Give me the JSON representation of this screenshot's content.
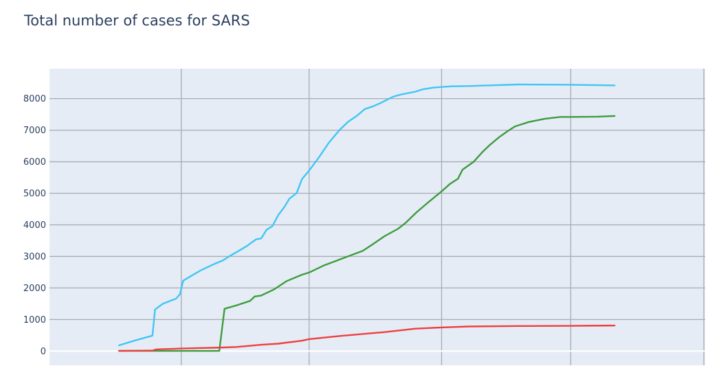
{
  "chart_data": {
    "type": "line",
    "title": "Total number of cases for SARS",
    "xlabel": "",
    "ylabel": "",
    "ylim": [
      -450,
      8950
    ],
    "y_ticks": [
      0,
      1000,
      2000,
      3000,
      4000,
      5000,
      6000,
      7000,
      8000
    ],
    "y_tick_labels": [
      "0",
      "1000",
      "2000",
      "3000",
      "4000",
      "5000",
      "6000",
      "7000",
      "8000"
    ],
    "xlim": [
      0,
      100
    ],
    "x_gridlines": [
      20.1,
      39.6,
      59.8,
      79.5,
      99.8
    ],
    "grid": true,
    "legend": "none",
    "series": [
      {
        "color": "#3fc6f5",
        "x": [
          10.6,
          13.1,
          15.7,
          16.1,
          17.3,
          18.4,
          19.3,
          19.9,
          20.4,
          21.2,
          23.0,
          24.8,
          26.5,
          27.4,
          28.9,
          30.1,
          31.5,
          32.3,
          33.1,
          34.0,
          34.9,
          35.8,
          36.6,
          37.7,
          38.5,
          39.6,
          41.2,
          42.6,
          44.3,
          45.5,
          46.9,
          48.1,
          49.4,
          50.6,
          52.4,
          53.6,
          55.8,
          57.0,
          58.6,
          59.8,
          61.4,
          63.9,
          71.6,
          79.5,
          86.2
        ],
        "y": [
          180,
          340,
          490,
          1320,
          1500,
          1590,
          1660,
          1800,
          2230,
          2330,
          2550,
          2730,
          2880,
          3000,
          3180,
          3330,
          3540,
          3570,
          3840,
          3960,
          4310,
          4560,
          4830,
          5010,
          5450,
          5720,
          6170,
          6600,
          7020,
          7260,
          7460,
          7670,
          7760,
          7870,
          8060,
          8130,
          8220,
          8300,
          8350,
          8370,
          8390,
          8400,
          8450,
          8440,
          8420
        ]
      },
      {
        "color": "#3c9c3c",
        "x": [
          10.6,
          15.7,
          20.1,
          25.9,
          26.7,
          28.4,
          30.6,
          31.3,
          32.3,
          34.2,
          36.2,
          38.5,
          39.6,
          41.8,
          45.0,
          47.8,
          49.4,
          51.1,
          53.2,
          54.3,
          56.0,
          57.8,
          59.8,
          61.1,
          62.3,
          63.0,
          64.7,
          66.0,
          67.2,
          68.6,
          69.8,
          71.0,
          73.1,
          75.5,
          77.9,
          79.5,
          83.6,
          86.2
        ],
        "y": [
          5,
          5,
          5,
          5,
          1340,
          1440,
          1590,
          1730,
          1760,
          1950,
          2220,
          2420,
          2490,
          2710,
          2960,
          3180,
          3400,
          3640,
          3880,
          4060,
          4400,
          4720,
          5060,
          5300,
          5460,
          5750,
          6000,
          6300,
          6540,
          6780,
          6960,
          7120,
          7260,
          7360,
          7420,
          7420,
          7430,
          7450
        ]
      },
      {
        "color": "#ef3e3e",
        "x": [
          10.6,
          15.7,
          16.3,
          20.1,
          24.8,
          26.7,
          28.6,
          32.3,
          34.9,
          38.5,
          39.6,
          44.3,
          49.4,
          51.1,
          55.8,
          59.8,
          63.9,
          71.6,
          79.5,
          86.2
        ],
        "y": [
          10,
          15,
          55,
          80,
          105,
          115,
          130,
          200,
          235,
          330,
          380,
          480,
          570,
          600,
          710,
          750,
          780,
          795,
          800,
          810
        ]
      }
    ]
  }
}
